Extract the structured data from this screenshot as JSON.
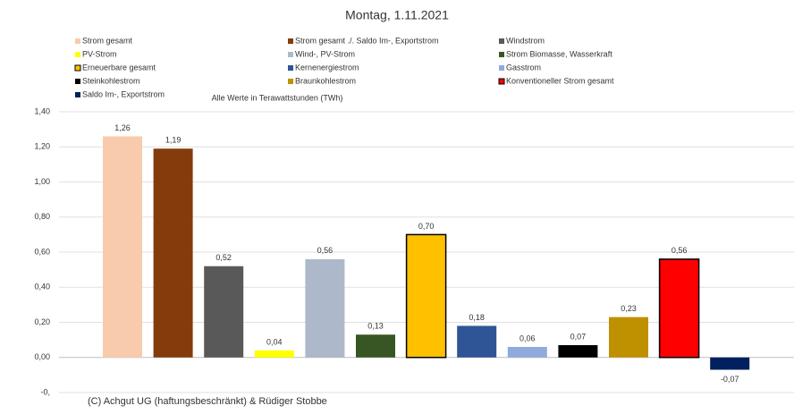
{
  "chart_data": {
    "type": "bar",
    "title": "Montag, 1.11.2021",
    "subtitle": "Alle Werte in Terawattstunden (TWh)",
    "footer": "(C) Achgut UG (haftungsbeschränkt) & Rüdiger Stobbe",
    "ylim": [
      -0.2,
      1.4
    ],
    "yticks": [
      {
        "value": -0.2,
        "label": "-0,"
      },
      {
        "value": 0,
        "label": "0,00"
      },
      {
        "value": 0.2,
        "label": "0,20"
      },
      {
        "value": 0.4,
        "label": "0,40"
      },
      {
        "value": 0.6,
        "label": "0,60"
      },
      {
        "value": 0.8,
        "label": "0,80"
      },
      {
        "value": 1.0,
        "label": "1,00"
      },
      {
        "value": 1.2,
        "label": "1,20"
      },
      {
        "value": 1.4,
        "label": "1,40"
      }
    ],
    "grid": true,
    "series": [
      {
        "name": "Strom gesamt",
        "color": "#f8cbad",
        "values": [
          1.26
        ],
        "value_labels": [
          "1,26"
        ]
      },
      {
        "name": "Strom gesamt ./. Saldo Im-, Exportstrom",
        "color": "#843c0c",
        "values": [
          1.19
        ],
        "value_labels": [
          "1,19"
        ]
      },
      {
        "name": "Windstrom",
        "color": "#595959",
        "values": [
          0.52
        ],
        "value_labels": [
          "0,52"
        ]
      },
      {
        "name": "PV-Strom",
        "color": "#ffff00",
        "values": [
          0.04
        ],
        "value_labels": [
          "0,04"
        ]
      },
      {
        "name": "Wind-, PV-Strom",
        "color": "#adb9ca",
        "values": [
          0.56
        ],
        "value_labels": [
          "0,56"
        ]
      },
      {
        "name": "Strom Biomasse, Wasserkraft",
        "color": "#375623",
        "values": [
          0.13
        ],
        "value_labels": [
          "0,13"
        ]
      },
      {
        "name": "Erneuerbare gesamt",
        "color": "#ffc000",
        "edgecolor": "#000000",
        "values": [
          0.7
        ],
        "value_labels": [
          "0,70"
        ]
      },
      {
        "name": "Kernenergiestrom",
        "color": "#2f5597",
        "values": [
          0.18
        ],
        "value_labels": [
          "0,18"
        ]
      },
      {
        "name": "Gasstrom",
        "color": "#8faadc",
        "values": [
          0.06
        ],
        "value_labels": [
          "0,06"
        ]
      },
      {
        "name": "Steinkohlestrom",
        "color": "#000000",
        "values": [
          0.07
        ],
        "value_labels": [
          "0,07"
        ]
      },
      {
        "name": "Braunkohlestrom",
        "color": "#bf9000",
        "values": [
          0.23
        ],
        "value_labels": [
          "0,23"
        ]
      },
      {
        "name": "Konventioneller Strom gesamt",
        "color": "#ff0000",
        "edgecolor": "#000000",
        "values": [
          0.56
        ],
        "value_labels": [
          "0,56"
        ]
      },
      {
        "name": "Saldo Im-, Exportstrom",
        "color": "#002060",
        "values": [
          -0.07
        ],
        "value_labels": [
          "-0,07"
        ]
      }
    ]
  }
}
